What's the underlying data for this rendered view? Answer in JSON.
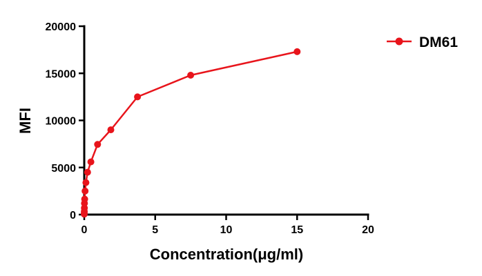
{
  "chart_data": {
    "type": "line",
    "xlabel": "Concentration(μg/ml)",
    "ylabel": "MFI",
    "xlim": [
      0,
      20
    ],
    "ylim": [
      0,
      20000
    ],
    "x_ticks": [
      0,
      5,
      10,
      15,
      20
    ],
    "y_ticks": [
      0,
      5000,
      10000,
      15000,
      20000
    ],
    "grid": false,
    "legend_position": "top-right",
    "series": [
      {
        "name": "DM61",
        "color": "#e8141b",
        "marker": "circle",
        "x": [
          0.0009,
          0.0018,
          0.0037,
          0.0073,
          0.0146,
          0.029,
          0.059,
          0.117,
          0.234,
          0.469,
          0.938,
          1.875,
          3.75,
          7.5,
          15
        ],
        "y": [
          50,
          150,
          350,
          700,
          1200,
          1650,
          2500,
          3400,
          4500,
          5600,
          7450,
          9000,
          12500,
          14800,
          17300
        ]
      }
    ]
  }
}
